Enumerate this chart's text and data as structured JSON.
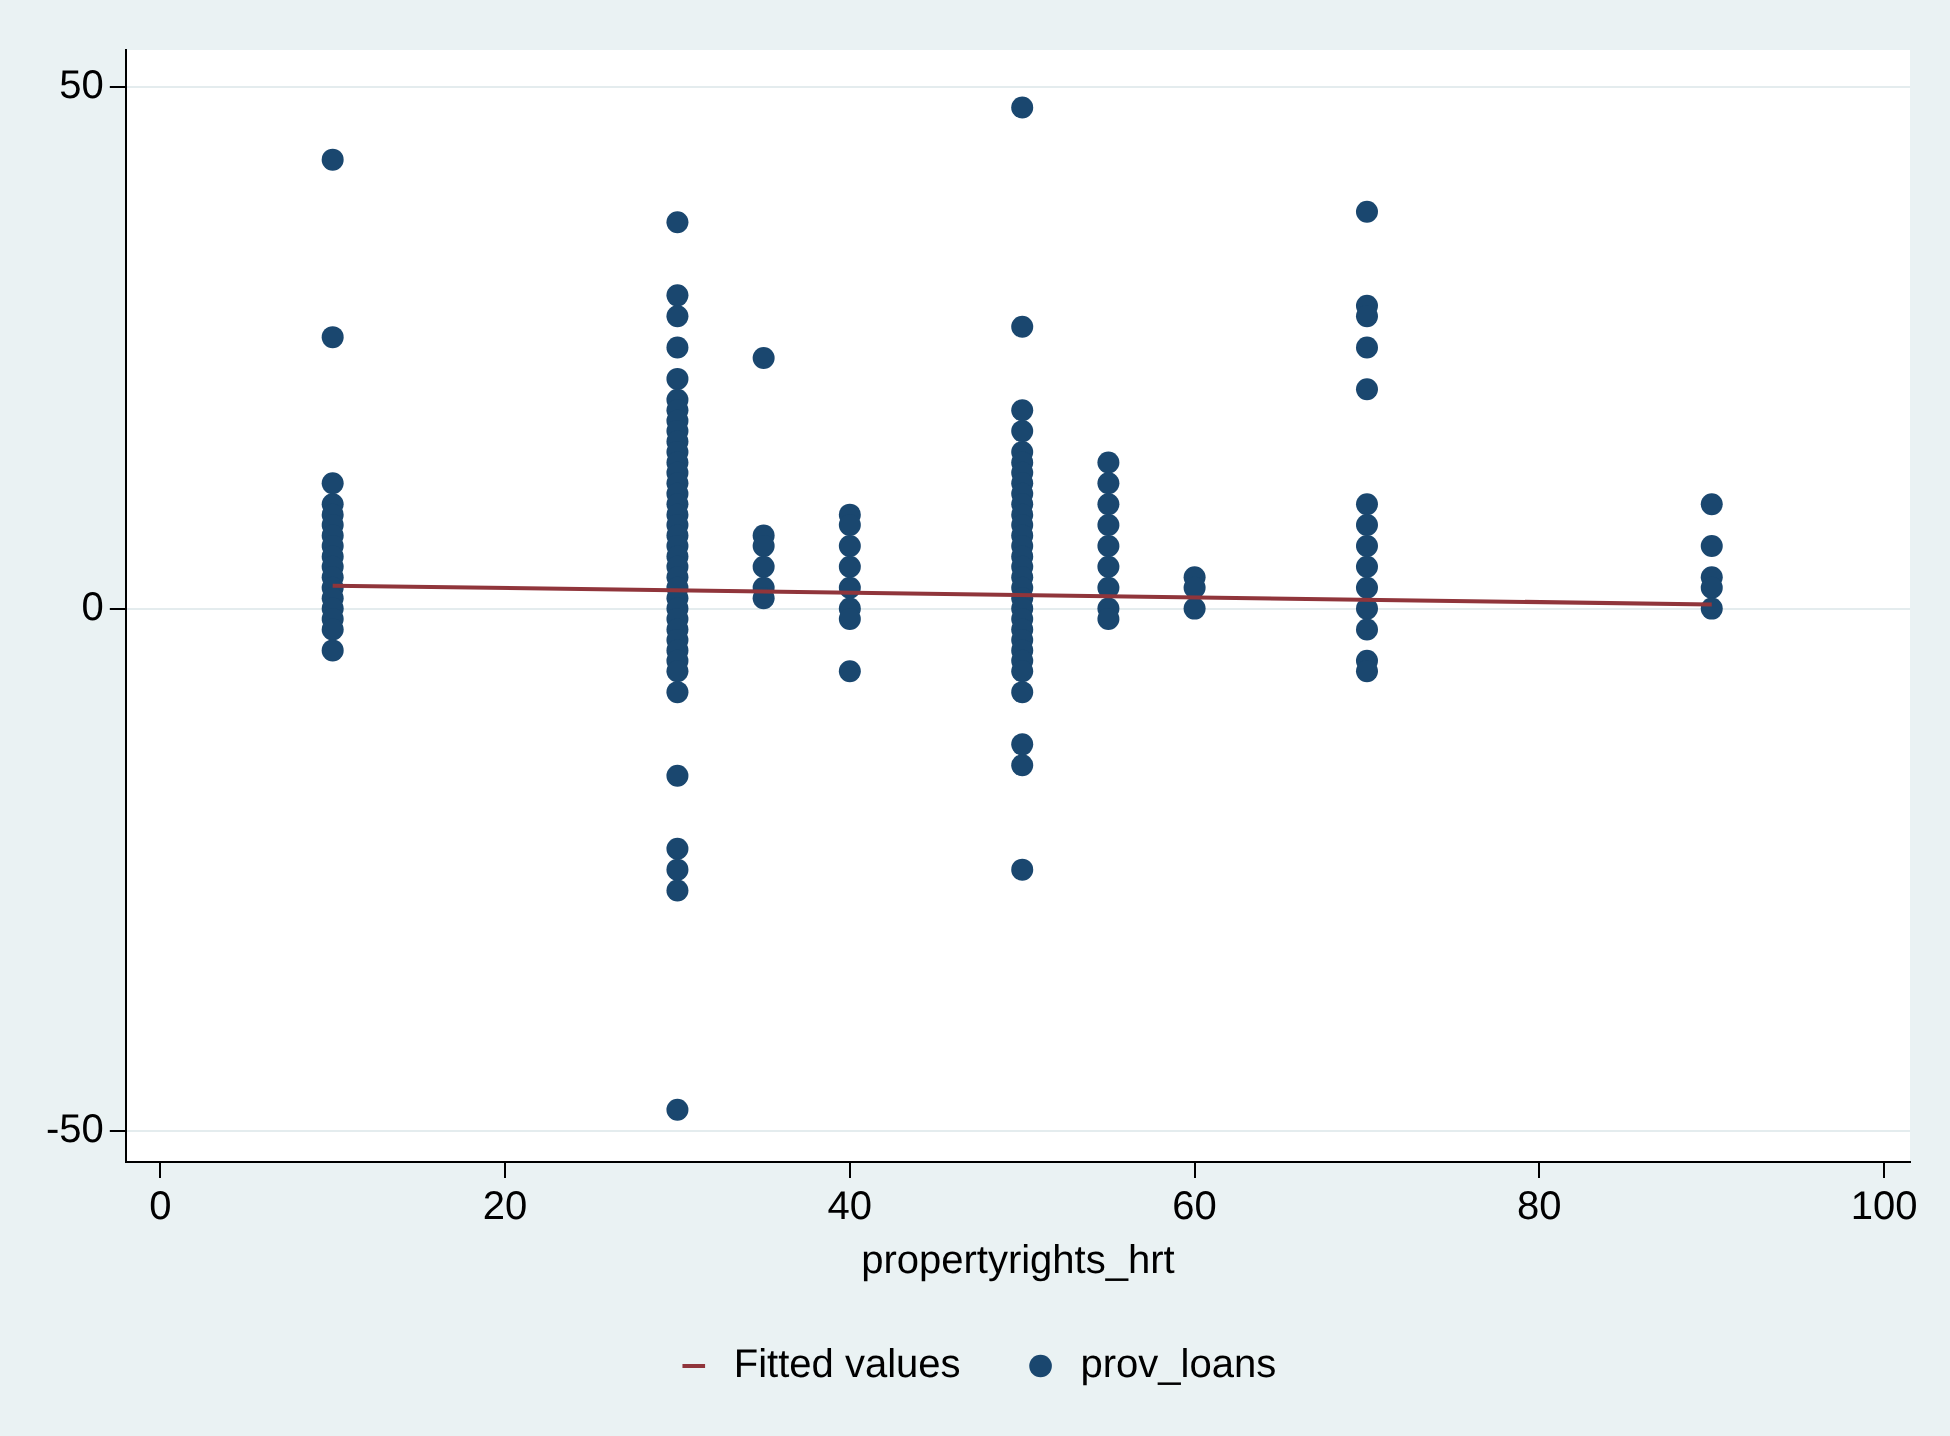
{
  "chart_data": {
    "type": "scatter",
    "xlabel": "propertyrights_hrt",
    "xlim": [
      -2,
      101.5
    ],
    "ylim": [
      -53,
      53.5
    ],
    "xticks": [
      0,
      20,
      40,
      60,
      80,
      100
    ],
    "yticks": [
      -50,
      0,
      50
    ],
    "grid": "y",
    "legend": "bottom",
    "marker": "circle",
    "series": [
      {
        "name": "prov_loans",
        "type": "scatter",
        "color": "#1a476f",
        "x": [
          10,
          10,
          10,
          10,
          10,
          10,
          10,
          10,
          10,
          10,
          10,
          10,
          10,
          10,
          10,
          10,
          10,
          30,
          30,
          30,
          30,
          30,
          30,
          30,
          30,
          30,
          30,
          30,
          30,
          30,
          30,
          30,
          30,
          30,
          30,
          30,
          30,
          30,
          30,
          30,
          30,
          30,
          30,
          30,
          30,
          30,
          30,
          30,
          30,
          30,
          30,
          30,
          30,
          30,
          30,
          35,
          35,
          35,
          35,
          35,
          35,
          40,
          40,
          40,
          40,
          40,
          40,
          40,
          40,
          50,
          50,
          50,
          50,
          50,
          50,
          50,
          50,
          50,
          50,
          50,
          50,
          50,
          50,
          50,
          50,
          50,
          50,
          50,
          50,
          50,
          50,
          50,
          50,
          50,
          50,
          50,
          50,
          50,
          50,
          55,
          55,
          55,
          55,
          55,
          55,
          55,
          55,
          55,
          60,
          60,
          60,
          70,
          70,
          70,
          70,
          70,
          70,
          70,
          70,
          70,
          70,
          70,
          70,
          70,
          70,
          90,
          90,
          90,
          90,
          90
        ],
        "values": [
          43,
          26,
          12,
          10,
          9,
          8,
          7,
          6,
          5,
          4,
          3,
          2,
          1,
          0,
          -1,
          -2,
          -4,
          37,
          30,
          28,
          25,
          22,
          20,
          19,
          18,
          17,
          16,
          15,
          14,
          13,
          12,
          11,
          10,
          9,
          8,
          7,
          6,
          5,
          4,
          3,
          2,
          1,
          0,
          -1,
          -2,
          -3,
          -4,
          -5,
          -6,
          -8,
          -16,
          -23,
          -25,
          -27,
          -48,
          24,
          7,
          6,
          4,
          2,
          1,
          9,
          8,
          6,
          4,
          2,
          0,
          -1,
          -6,
          48,
          27,
          19,
          17,
          15,
          14,
          13,
          12,
          11,
          10,
          9,
          8,
          7,
          6,
          5,
          4,
          3,
          2,
          1,
          0,
          -1,
          -2,
          -3,
          -4,
          -5,
          -6,
          -8,
          -13,
          -15,
          -25,
          14,
          12,
          10,
          8,
          6,
          4,
          2,
          0,
          -1,
          3,
          2,
          0,
          38,
          29,
          28,
          25,
          21,
          10,
          8,
          6,
          4,
          2,
          0,
          -2,
          -5,
          -6,
          10,
          6,
          3,
          2,
          0
        ]
      },
      {
        "name": "Fitted values",
        "type": "line",
        "color": "#90353b",
        "line_style": "solid",
        "marker": "none",
        "x": [
          10,
          90
        ],
        "values": [
          2.2,
          0.4
        ]
      }
    ]
  }
}
